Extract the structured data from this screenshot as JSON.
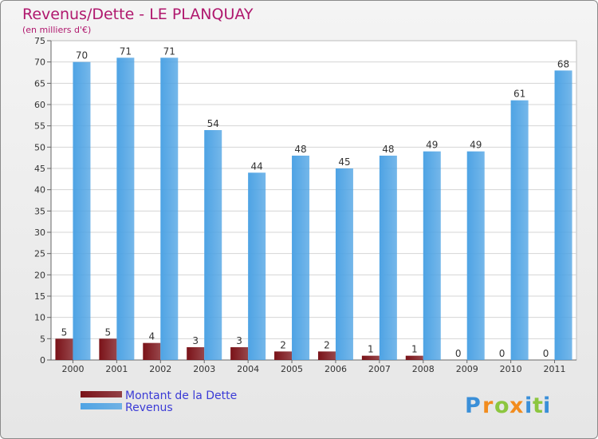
{
  "chart_data": {
    "type": "bar",
    "title": "Revenus/Dette - LE PLANQUAY",
    "subtitle": "(en milliers d'€)",
    "categories": [
      "2000",
      "2001",
      "2002",
      "2003",
      "2004",
      "2005",
      "2006",
      "2007",
      "2008",
      "2009",
      "2010",
      "2011"
    ],
    "series": [
      {
        "name": "Montant de la Dette",
        "color": "#7a1218",
        "values": [
          5,
          5,
          4,
          3,
          3,
          2,
          2,
          1,
          1,
          0,
          0,
          0
        ]
      },
      {
        "name": "Revenus",
        "color": "#4ea3e4",
        "values": [
          70,
          71,
          71,
          54,
          44,
          48,
          45,
          48,
          49,
          49,
          61,
          68
        ]
      }
    ],
    "ylim": [
      0,
      75
    ],
    "yticks": [
      0,
      5,
      10,
      15,
      20,
      25,
      30,
      35,
      40,
      45,
      50,
      55,
      60,
      65,
      70,
      75
    ],
    "grid": true,
    "legend": "bottom-left"
  },
  "brand": {
    "letters": [
      "P",
      "r",
      "o",
      "x",
      "i",
      "t",
      "i"
    ],
    "colors": [
      "#3a8fd8",
      "#f28c1e",
      "#8cc63f",
      "#f28c1e",
      "#3a8fd8",
      "#8cc63f",
      "#3a8fd8"
    ]
  }
}
